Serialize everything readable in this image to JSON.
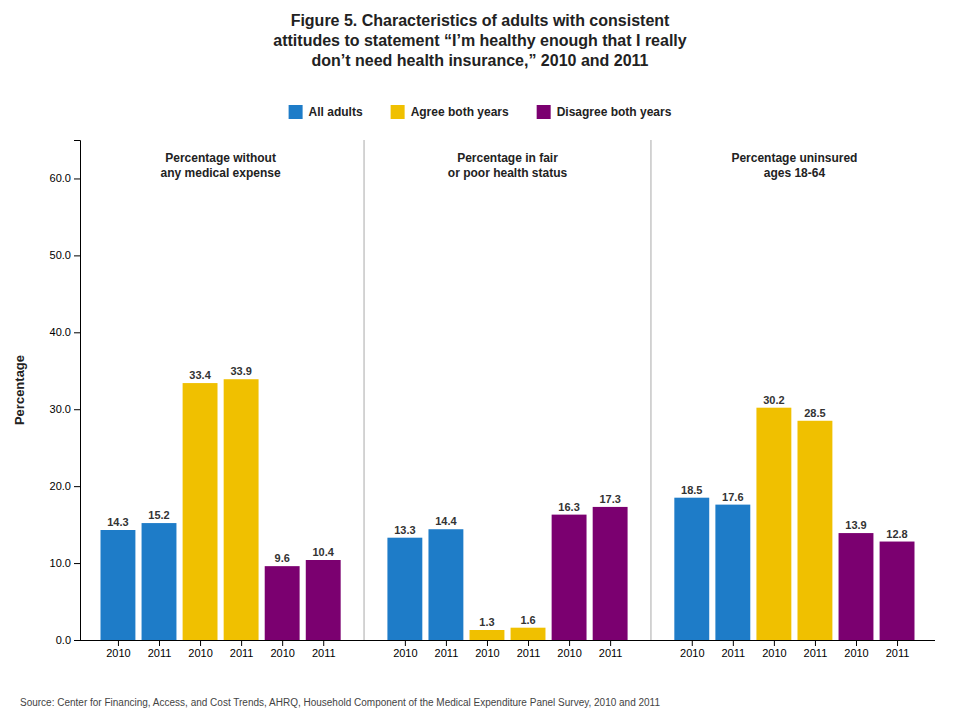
{
  "chart_data": {
    "type": "bar",
    "title": "Figure 5. Characteristics of adults with consistent\nattitudes to statement “I’m healthy enough that I really\ndon’t need health insurance,” 2010 and 2011",
    "y_label": "Percentage",
    "annotations": [
      "Percentage without\nany medical expense",
      "Percentage in fair\nor poor health status",
      "Percentage uninsured\nages 18-64"
    ],
    "source": "Source: Center for Financing, Access, and Cost Trends, AHRQ, Household Component of the Medical Expenditure Panel Survey,  2010 and 2011",
    "categories": [
      "2010",
      "2011",
      "2010",
      "2011",
      "2010",
      "2011",
      "2010",
      "2011",
      "2010",
      "2011",
      "2010",
      "2011",
      "2010",
      "2011",
      "2010",
      "2011",
      "2010",
      "2011"
    ],
    "series": [
      {
        "name": "All adults",
        "color": "#1E7CC8",
        "values": [
          14.3,
          15.2,
          null,
          null,
          null,
          null,
          13.3,
          14.4,
          null,
          null,
          null,
          null,
          18.5,
          17.6,
          null,
          null,
          null,
          null
        ]
      },
      {
        "name": "Agree both years",
        "color": "#F0C000",
        "values": [
          null,
          null,
          33.4,
          33.9,
          null,
          null,
          null,
          null,
          1.3,
          1.6,
          null,
          null,
          null,
          null,
          30.2,
          28.5,
          null,
          null
        ]
      },
      {
        "name": "Disagree both years",
        "color": "#7B0070",
        "values": [
          null,
          null,
          null,
          null,
          9.6,
          10.4,
          null,
          null,
          null,
          null,
          16.3,
          17.3,
          null,
          null,
          null,
          null,
          13.9,
          12.8
        ]
      }
    ],
    "ylim": [
      0,
      65
    ],
    "yticks": [
      {
        "value": 0,
        "label": "0.0"
      },
      {
        "value": 10,
        "label": "10.0"
      },
      {
        "value": 20,
        "label": "20.0"
      },
      {
        "value": 30,
        "label": "30.0"
      },
      {
        "value": 40,
        "label": "40.0"
      },
      {
        "value": 50,
        "label": "50.0"
      },
      {
        "value": 60,
        "label": "60.0"
      }
    ],
    "grid": false,
    "legend": "top",
    "data_labels": true
  }
}
